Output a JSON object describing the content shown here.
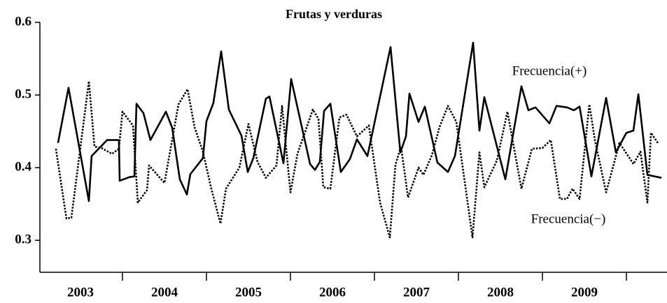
{
  "chart_data": {
    "type": "line",
    "title": "Frutas y verduras",
    "xlim": [
      2003.017,
      2010.483
    ],
    "ylim": [
      0.256,
      0.6
    ],
    "yticks": [
      0.3,
      0.4,
      0.5,
      0.6
    ],
    "xticks": [
      {
        "value": 2003.5,
        "label": "2003"
      },
      {
        "value": 2004.5,
        "label": "2004"
      },
      {
        "value": 2005.5,
        "label": "2005"
      },
      {
        "value": 2006.5,
        "label": "2006"
      },
      {
        "value": 2007.5,
        "label": "2007"
      },
      {
        "value": 2008.5,
        "label": "2008"
      },
      {
        "value": 2009.5,
        "label": "2009"
      }
    ],
    "xtick_marks": [
      2004,
      2005,
      2006,
      2007,
      2008,
      2009,
      2010
    ],
    "grid": false,
    "series": [
      {
        "name": "Frecuencia(+)",
        "color": "#000000",
        "style": "solid",
        "x": [
          2003.233,
          2003.358,
          2003.6,
          2003.633,
          2003.817,
          2003.958,
          2003.967,
          2004.083,
          2004.142,
          2004.167,
          2004.25,
          2004.333,
          2004.517,
          2004.592,
          2004.683,
          2004.767,
          2004.808,
          2004.958,
          2005.0,
          2005.083,
          2005.175,
          2005.267,
          2005.417,
          2005.492,
          2005.558,
          2005.708,
          2005.75,
          2005.917,
          2006.008,
          2006.233,
          2006.292,
          2006.35,
          2006.4,
          2006.475,
          2006.6,
          2006.708,
          2006.792,
          2006.917,
          2007.192,
          2007.308,
          2007.375,
          2007.417,
          2007.525,
          2007.6,
          2007.75,
          2007.875,
          2007.958,
          2008.175,
          2008.25,
          2008.308,
          2008.558,
          2008.75,
          2008.833,
          2008.917,
          2009.083,
          2009.167,
          2009.292,
          2009.375,
          2009.442,
          2009.583,
          2009.758,
          2009.875,
          2010.0,
          2010.083,
          2010.142,
          2010.25,
          2010.417
        ],
        "values": [
          0.434,
          0.51,
          0.354,
          0.416,
          0.438,
          0.438,
          0.382,
          0.387,
          0.388,
          0.488,
          0.475,
          0.438,
          0.477,
          0.455,
          0.384,
          0.363,
          0.391,
          0.413,
          0.464,
          0.489,
          0.56,
          0.48,
          0.444,
          0.394,
          0.413,
          0.495,
          0.498,
          0.406,
          0.522,
          0.405,
          0.397,
          0.408,
          0.478,
          0.488,
          0.394,
          0.412,
          0.439,
          0.416,
          0.566,
          0.421,
          0.443,
          0.502,
          0.463,
          0.484,
          0.407,
          0.394,
          0.416,
          0.572,
          0.451,
          0.497,
          0.384,
          0.512,
          0.479,
          0.483,
          0.461,
          0.485,
          0.483,
          0.479,
          0.484,
          0.388,
          0.496,
          0.421,
          0.448,
          0.451,
          0.501,
          0.39,
          0.386
        ]
      },
      {
        "name": "Frecuencia(−)",
        "color": "#000000",
        "style": "dotted",
        "x": [
          2003.208,
          2003.333,
          2003.392,
          2003.6,
          2003.667,
          2003.75,
          2003.875,
          2003.958,
          2004.0,
          2004.125,
          2004.183,
          2004.292,
          2004.317,
          2004.5,
          2004.667,
          2004.775,
          2004.858,
          2004.958,
          2005.058,
          2005.167,
          2005.233,
          2005.392,
          2005.5,
          2005.608,
          2005.708,
          2005.833,
          2005.9,
          2006.0,
          2006.083,
          2006.267,
          2006.333,
          2006.392,
          2006.475,
          2006.583,
          2006.667,
          2006.792,
          2006.933,
          2007.067,
          2007.183,
          2007.25,
          2007.317,
          2007.4,
          2007.525,
          2007.583,
          2007.683,
          2007.775,
          2007.875,
          2007.975,
          2008.167,
          2008.25,
          2008.308,
          2008.458,
          2008.583,
          2008.75,
          2008.875,
          2009.0,
          2009.1,
          2009.208,
          2009.292,
          2009.358,
          2009.442,
          2009.558,
          2009.625,
          2009.758,
          2009.917,
          2010.083,
          2010.167,
          2010.25,
          2010.292,
          2010.375
        ],
        "values": [
          0.426,
          0.33,
          0.331,
          0.519,
          0.429,
          0.427,
          0.419,
          0.426,
          0.477,
          0.458,
          0.352,
          0.369,
          0.403,
          0.379,
          0.487,
          0.508,
          0.456,
          0.422,
          0.371,
          0.323,
          0.371,
          0.4,
          0.46,
          0.408,
          0.386,
          0.403,
          0.485,
          0.366,
          0.419,
          0.48,
          0.467,
          0.373,
          0.371,
          0.469,
          0.473,
          0.443,
          0.458,
          0.352,
          0.304,
          0.404,
          0.429,
          0.359,
          0.4,
          0.39,
          0.417,
          0.456,
          0.485,
          0.463,
          0.304,
          0.421,
          0.373,
          0.41,
          0.477,
          0.371,
          0.426,
          0.427,
          0.438,
          0.357,
          0.357,
          0.371,
          0.357,
          0.487,
          0.438,
          0.366,
          0.434,
          0.405,
          0.422,
          0.352,
          0.448,
          0.434
        ]
      }
    ]
  }
}
